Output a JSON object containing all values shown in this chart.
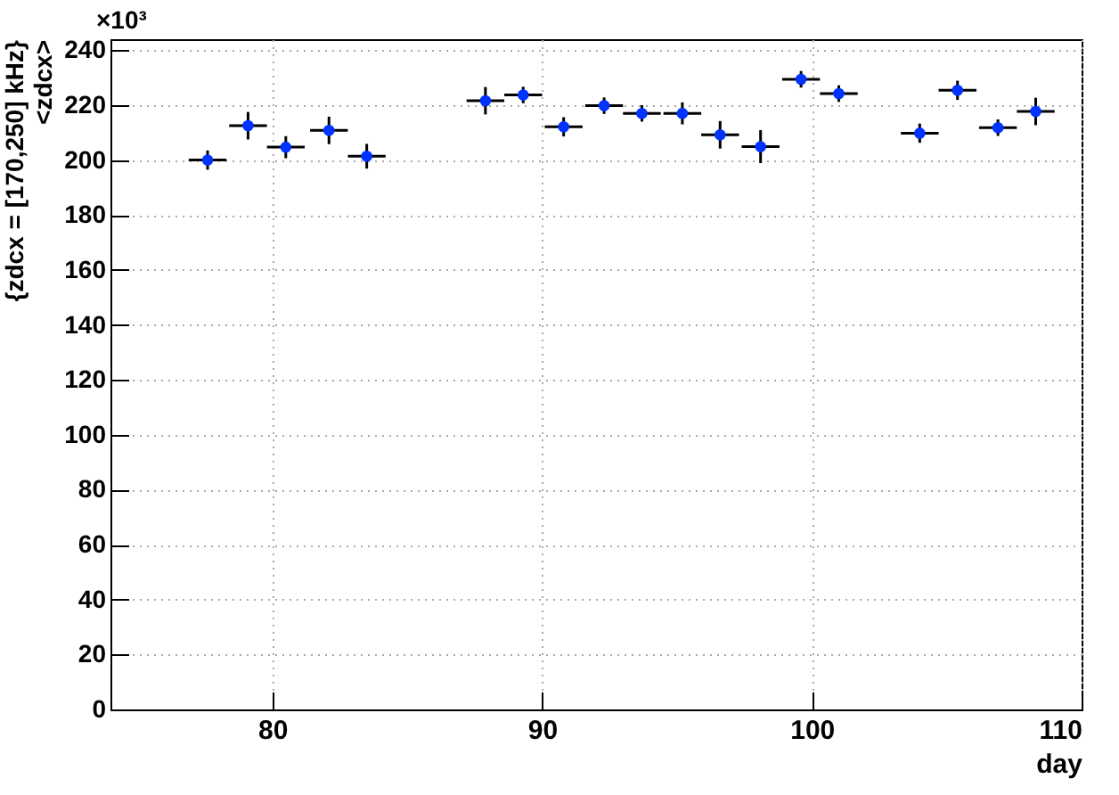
{
  "chart_data": {
    "type": "scatter",
    "xlabel": "day",
    "ylabel": "{zdcx = [170,250] kHz}\n<zdcx>",
    "annotations": [
      "×10³"
    ],
    "x": [
      77.6,
      79.1,
      80.5,
      82.1,
      83.5,
      87.9,
      89.3,
      90.8,
      92.3,
      93.7,
      95.2,
      96.6,
      98.1,
      99.6,
      101.0,
      104.0,
      105.4,
      106.9,
      108.3
    ],
    "series": [
      {
        "color": "#0033ff",
        "values": [
          200,
          212.5,
          204.7,
          210.8,
          201.4,
          221.6,
          223.7,
          212.1,
          219.8,
          217,
          217,
          209.2,
          204.9,
          229.4,
          224.2,
          209.8,
          225.4,
          211.8,
          217.7
        ],
        "errors": [
          3.5,
          5,
          4,
          5,
          4.5,
          5,
          3,
          3.5,
          3,
          3,
          4,
          5,
          6,
          3,
          3,
          3.5,
          3.5,
          3,
          5
        ],
        "xerrors": [
          0.7,
          0.7,
          0.7,
          0.7,
          0.7,
          0.7,
          0.7,
          0.7,
          0.7,
          0.7,
          0.7,
          0.7,
          0.7,
          0.7,
          0.7,
          0.7,
          0.7,
          0.7,
          0.7
        ]
      }
    ],
    "marker": "circle",
    "xlim": [
      74,
      110
    ],
    "xticks": [
      80,
      90,
      100,
      110
    ],
    "ylim": [
      0,
      244
    ],
    "yticks": [
      0,
      20,
      40,
      60,
      80,
      100,
      120,
      140,
      160,
      180,
      200,
      220,
      240
    ],
    "grid": true
  }
}
